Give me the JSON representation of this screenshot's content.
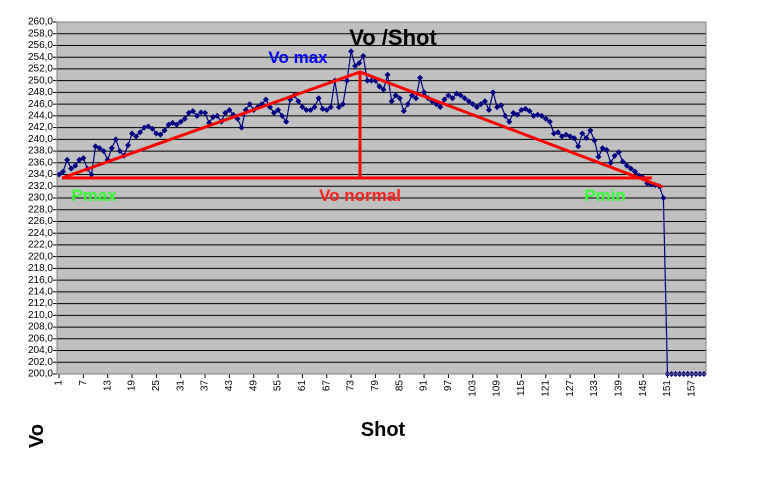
{
  "chart_data": {
    "type": "line",
    "title": "Vo /Shot",
    "x_label": "Shot",
    "y_label": "Vo",
    "annotations": [
      "Vo max",
      "Vo normal",
      "Pmax",
      "Pmin"
    ],
    "x": [
      1,
      2,
      3,
      4,
      5,
      6,
      7,
      8,
      9,
      10,
      11,
      12,
      13,
      14,
      15,
      16,
      17,
      18,
      19,
      20,
      21,
      22,
      23,
      24,
      25,
      26,
      27,
      28,
      29,
      30,
      31,
      32,
      33,
      34,
      35,
      36,
      37,
      38,
      39,
      40,
      41,
      42,
      43,
      44,
      45,
      46,
      47,
      48,
      49,
      50,
      51,
      52,
      53,
      54,
      55,
      56,
      57,
      58,
      59,
      60,
      61,
      62,
      63,
      64,
      65,
      66,
      67,
      68,
      69,
      70,
      71,
      72,
      73,
      74,
      75,
      76,
      77,
      78,
      79,
      80,
      81,
      82,
      83,
      84,
      85,
      86,
      87,
      88,
      89,
      90,
      91,
      92,
      93,
      94,
      95,
      96,
      97,
      98,
      99,
      100,
      101,
      102,
      103,
      104,
      105,
      106,
      107,
      108,
      109,
      110,
      111,
      112,
      113,
      114,
      115,
      116,
      117,
      118,
      119,
      120,
      121,
      122,
      123,
      124,
      125,
      126,
      127,
      128,
      129,
      130,
      131,
      132,
      133,
      134,
      135,
      136,
      137,
      138,
      139,
      140,
      141,
      142,
      143,
      144,
      145,
      146,
      147,
      148,
      149,
      150,
      151,
      152,
      153,
      154,
      155,
      156,
      157,
      158,
      159,
      160
    ],
    "series": [
      {
        "color": "#000080",
        "values": [
          234,
          234.5,
          236.5,
          235,
          235.5,
          236.5,
          236.8,
          235,
          234,
          238.8,
          238.5,
          238,
          236.5,
          238.5,
          240,
          238,
          237.2,
          239,
          241,
          240.5,
          241.2,
          242,
          242.2,
          241.8,
          241,
          240.8,
          241.5,
          242.5,
          242.8,
          242.5,
          243,
          243.5,
          244.5,
          244.8,
          244,
          244.6,
          244.5,
          242.8,
          243.8,
          244,
          243,
          244.5,
          245,
          244.2,
          243.5,
          242,
          245,
          246,
          245,
          245.5,
          246,
          246.8,
          245.5,
          244.5,
          245,
          244,
          243,
          246.8,
          247.5,
          246.5,
          245.5,
          245,
          245,
          245.5,
          247,
          245.2,
          245,
          245.5,
          250,
          245.5,
          246,
          250,
          255,
          252.5,
          253,
          254.2,
          250,
          250,
          250,
          249,
          248.5,
          251,
          246.5,
          247.5,
          247,
          244.8,
          246,
          247.5,
          247,
          250.5,
          248,
          247,
          246.5,
          246,
          245.5,
          246.8,
          247.5,
          247,
          247.8,
          247.5,
          247,
          246.5,
          246,
          245.5,
          246,
          246.5,
          245,
          248,
          245.5,
          245.8,
          244,
          243,
          244.5,
          244.2,
          245,
          245.2,
          244.8,
          244,
          244.2,
          244,
          243.5,
          243,
          241,
          241.2,
          240.5,
          240.8,
          240.5,
          240.2,
          238.8,
          241,
          240.2,
          241.5,
          239.8,
          237,
          238.5,
          238.2,
          236,
          237.2,
          237.8,
          236.2,
          235.5,
          235,
          234.5,
          233.8,
          233.5,
          232.5,
          232.3,
          232.2,
          232,
          230,
          200,
          200,
          200,
          200,
          200,
          200,
          200,
          200,
          200,
          200
        ]
      }
    ],
    "xlim": [
      0.5,
      160.5
    ],
    "xticks": [
      1,
      7,
      13,
      19,
      25,
      31,
      37,
      43,
      49,
      55,
      61,
      67,
      73,
      79,
      85,
      91,
      97,
      103,
      109,
      115,
      121,
      127,
      133,
      139,
      145,
      151,
      157
    ],
    "ylim": [
      200,
      260
    ],
    "yticks": [
      {
        "value": 200,
        "label": "200,0"
      },
      {
        "value": 202,
        "label": "202,0"
      },
      {
        "value": 204,
        "label": "204,0"
      },
      {
        "value": 206,
        "label": "206,0"
      },
      {
        "value": 208,
        "label": "208,0"
      },
      {
        "value": 210,
        "label": "210,0"
      },
      {
        "value": 212,
        "label": "212,0"
      },
      {
        "value": 214,
        "label": "214,0"
      },
      {
        "value": 216,
        "label": "216,0"
      },
      {
        "value": 218,
        "label": "218,0"
      },
      {
        "value": 220,
        "label": "220,0"
      },
      {
        "value": 222,
        "label": "222,0"
      },
      {
        "value": 224,
        "label": "224,0"
      },
      {
        "value": 226,
        "label": "226,0"
      },
      {
        "value": 228,
        "label": "228,0"
      },
      {
        "value": 230,
        "label": "230,0"
      },
      {
        "value": 232,
        "label": "232,0"
      },
      {
        "value": 234,
        "label": "234,0"
      },
      {
        "value": 236,
        "label": "236,0"
      },
      {
        "value": 238,
        "label": "238,0"
      },
      {
        "value": 240,
        "label": "240,0"
      },
      {
        "value": 242,
        "label": "242,0"
      },
      {
        "value": 244,
        "label": "244,0"
      },
      {
        "value": 246,
        "label": "246,0"
      },
      {
        "value": 248,
        "label": "248,0"
      },
      {
        "value": 250,
        "label": "250,0"
      },
      {
        "value": 252,
        "label": "252,0"
      },
      {
        "value": 254,
        "label": "254,0"
      },
      {
        "value": 256,
        "label": "256,0"
      },
      {
        "value": 258,
        "label": "258,0"
      },
      {
        "value": 260,
        "label": "260,0"
      }
    ],
    "grid": true
  }
}
